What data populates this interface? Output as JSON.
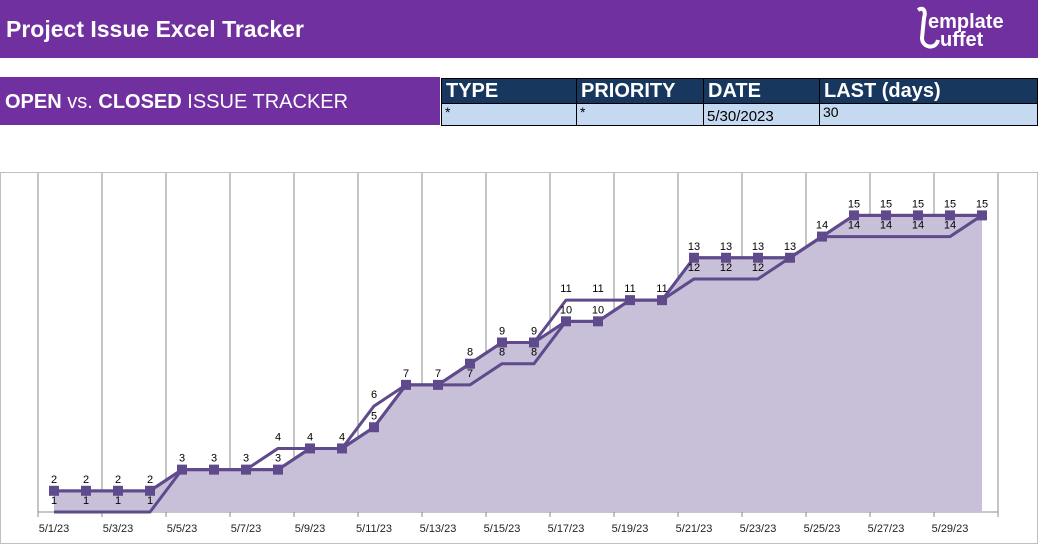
{
  "header": {
    "title": "Project Issue Excel Tracker",
    "logo_text": "template buffet"
  },
  "band": {
    "open": "OPEN",
    "vs": "vs.",
    "closed": "CLOSED",
    "rest": "ISSUE TRACKER"
  },
  "filters": {
    "headers": [
      "TYPE",
      "PRIORITY",
      "DATE",
      "LAST (days)"
    ],
    "values": [
      "*",
      "*",
      "5/30/2023",
      "30"
    ]
  },
  "colors": {
    "header": "#7030a0",
    "table_header": "#17375e",
    "table_cell": "#c5d9f1",
    "line": "#5f4a8b",
    "area": "#c8bfd8"
  },
  "chart_data": {
    "type": "line",
    "x": [
      "5/1/23",
      "5/2/23",
      "5/3/23",
      "5/4/23",
      "5/5/23",
      "5/6/23",
      "5/7/23",
      "5/8/23",
      "5/9/23",
      "5/10/23",
      "5/11/23",
      "5/12/23",
      "5/13/23",
      "5/14/23",
      "5/15/23",
      "5/16/23",
      "5/17/23",
      "5/18/23",
      "5/19/23",
      "5/20/23",
      "5/21/23",
      "5/22/23",
      "5/23/23",
      "5/24/23",
      "5/25/23",
      "5/26/23",
      "5/27/23",
      "5/28/23",
      "5/29/23",
      "5/30/23"
    ],
    "x_tick_labels": [
      "5/1/23",
      "5/3/23",
      "5/5/23",
      "5/7/23",
      "5/9/23",
      "5/11/23",
      "5/13/23",
      "5/15/23",
      "5/17/23",
      "5/19/23",
      "5/21/23",
      "5/23/23",
      "5/25/23",
      "5/27/23",
      "5/29/23"
    ],
    "series": [
      {
        "style": "line",
        "values": [
          2,
          2,
          2,
          2,
          3,
          3,
          3,
          4,
          4,
          4,
          6,
          7,
          7,
          8,
          9,
          9,
          11,
          11,
          11,
          11,
          13,
          13,
          13,
          13,
          14,
          15,
          15,
          15,
          15,
          15
        ]
      },
      {
        "style": "area-with-markers",
        "values": [
          2,
          2,
          2,
          2,
          3,
          3,
          3,
          3,
          4,
          4,
          5,
          7,
          7,
          8,
          9,
          9,
          10,
          10,
          11,
          11,
          13,
          13,
          13,
          13,
          14,
          15,
          15,
          15,
          15,
          15
        ]
      },
      {
        "style": "line",
        "values": [
          1,
          1,
          1,
          1,
          3,
          3,
          3,
          3,
          4,
          4,
          5,
          7,
          7,
          7,
          8,
          8,
          10,
          10,
          11,
          11,
          12,
          12,
          12,
          13,
          14,
          14,
          14,
          14,
          14,
          15
        ]
      }
    ],
    "ylim": [
      1,
      17
    ],
    "grid": "vertical",
    "data_labels": true,
    "title": "",
    "xlabel": "",
    "ylabel": ""
  }
}
